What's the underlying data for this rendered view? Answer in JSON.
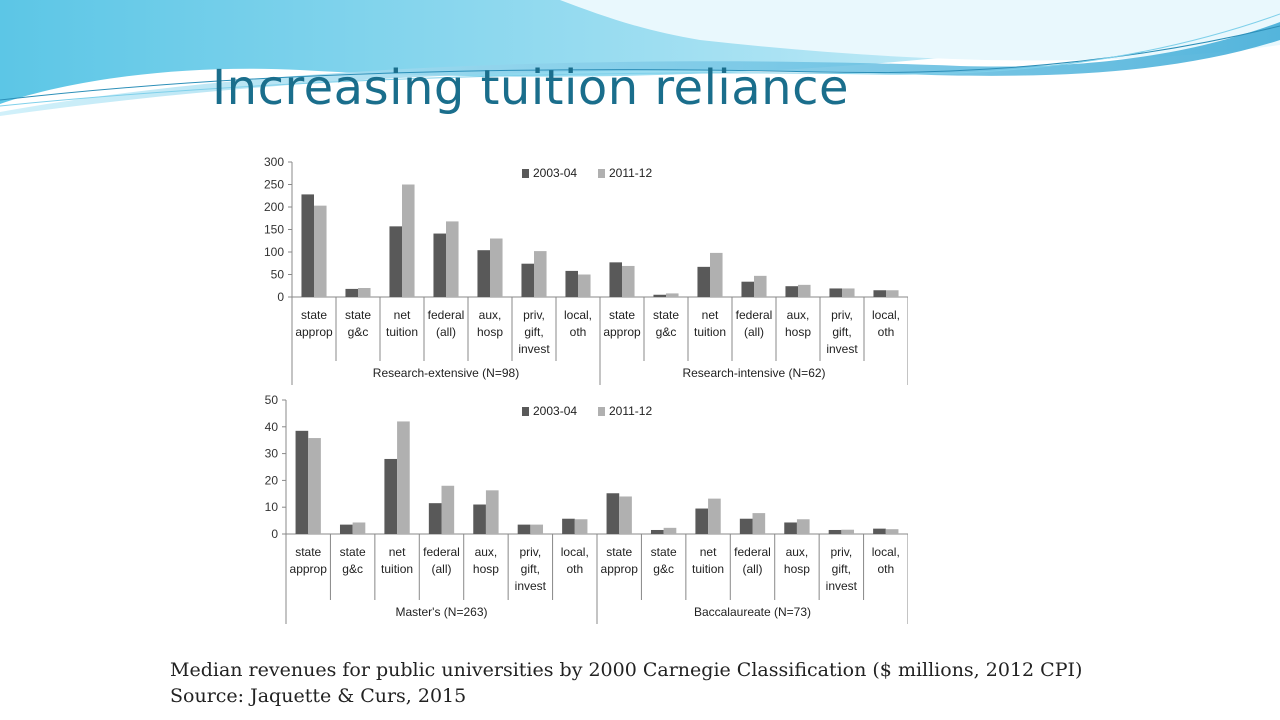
{
  "slide": {
    "title": "Increasing tuition reliance",
    "caption_line1": "Median revenues for public universities by 2000 Carnegie Classification ($ millions, 2012 CPI)",
    "caption_line2": "Source: Jaquette & Curs, 2015"
  },
  "colors": {
    "series_2003": "#595959",
    "series_2011": "#b0b0b0",
    "title": "#1a6e8c"
  },
  "chart_data": [
    {
      "type": "bar",
      "ylim": [
        0,
        300
      ],
      "yticks": [
        0,
        50,
        100,
        150,
        200,
        250,
        300
      ],
      "categories": [
        "state approp",
        "state g&c",
        "net tuition",
        "federal (all)",
        "aux, hosp",
        "priv, gift, invest",
        "local, oth"
      ],
      "legend": [
        "2003-04",
        "2011-12"
      ],
      "groups": [
        {
          "label": "Research-extensive (N=98)",
          "series": [
            {
              "name": "2003-04",
              "values": [
                228,
                18,
                157,
                141,
                104,
                74,
                58
              ]
            },
            {
              "name": "2011-12",
              "values": [
                203,
                20,
                250,
                168,
                130,
                102,
                50
              ]
            }
          ]
        },
        {
          "label": "Research-intensive (N=62)",
          "series": [
            {
              "name": "2003-04",
              "values": [
                77,
                5,
                67,
                34,
                24,
                19,
                15
              ]
            },
            {
              "name": "2011-12",
              "values": [
                69,
                8,
                98,
                47,
                27,
                19,
                15
              ]
            }
          ]
        }
      ]
    },
    {
      "type": "bar",
      "ylim": [
        0,
        50
      ],
      "yticks": [
        0,
        10,
        20,
        30,
        40,
        50
      ],
      "categories": [
        "state approp",
        "state g&c",
        "net tuition",
        "federal (all)",
        "aux, hosp",
        "priv, gift, invest",
        "local, oth"
      ],
      "legend": [
        "2003-04",
        "2011-12"
      ],
      "groups": [
        {
          "label": "Master's (N=263)",
          "series": [
            {
              "name": "2003-04",
              "values": [
                38.5,
                3.5,
                28,
                11.5,
                11,
                3.5,
                5.7
              ]
            },
            {
              "name": "2011-12",
              "values": [
                35.8,
                4.3,
                42,
                18,
                16.3,
                3.5,
                5.5
              ]
            }
          ]
        },
        {
          "label": "Baccalaureate (N=73)",
          "series": [
            {
              "name": "2003-04",
              "values": [
                15.2,
                1.5,
                9.5,
                5.7,
                4.3,
                1.5,
                2
              ]
            },
            {
              "name": "2011-12",
              "values": [
                14,
                2.3,
                13.2,
                7.8,
                5.5,
                1.6,
                1.8
              ]
            }
          ]
        }
      ]
    }
  ]
}
